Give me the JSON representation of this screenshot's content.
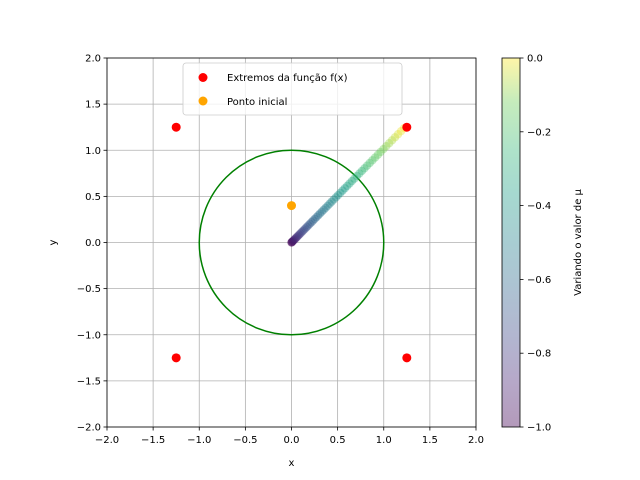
{
  "chart_data": {
    "type": "scatter",
    "xlabel": "x",
    "ylabel": "y",
    "xlim": [
      -2.0,
      2.0
    ],
    "ylim": [
      -2.0,
      2.0
    ],
    "xticks": [
      "−2.0",
      "−1.5",
      "−1.0",
      "−0.5",
      "0.0",
      "0.5",
      "1.0",
      "1.5",
      "2.0"
    ],
    "yticks": [
      "−2.0",
      "−1.5",
      "−1.0",
      "−0.5",
      "0.0",
      "0.5",
      "1.0",
      "1.5",
      "2.0"
    ],
    "grid": true,
    "legend_position": "upper-center",
    "series": [
      {
        "name": "Extremos da função f(x)",
        "color": "#ff0000",
        "points": [
          [
            -1.25,
            1.25
          ],
          [
            1.25,
            1.25
          ],
          [
            -1.25,
            -1.25
          ],
          [
            1.25,
            -1.25
          ]
        ]
      },
      {
        "name": "Ponto inicial",
        "color": "#ffa500",
        "points": [
          [
            0.0,
            0.4
          ]
        ]
      }
    ],
    "circle": {
      "center": [
        0,
        0
      ],
      "radius": 1.0,
      "color": "#008000"
    },
    "trajectory": {
      "start": [
        0.0,
        0.0
      ],
      "end": [
        1.22,
        1.24
      ],
      "mu_range": [
        -1.0,
        0.0
      ],
      "num_points": 60,
      "alpha": 0.4
    },
    "colorbar": {
      "label": "Variando o valor de μ",
      "range": [
        -1.0,
        0.0
      ],
      "ticks": [
        "−1.0",
        "−0.8",
        "−0.6",
        "−0.4",
        "−0.2",
        "0.0"
      ],
      "colormap": "viridis"
    }
  }
}
